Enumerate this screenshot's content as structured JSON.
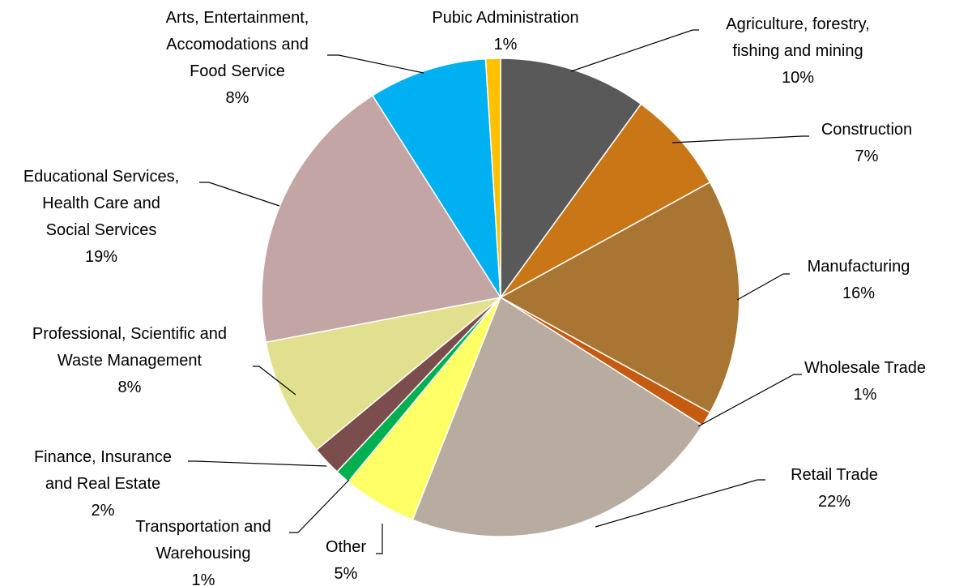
{
  "chart_data": {
    "type": "pie",
    "title": "",
    "slices": [
      {
        "label": [
          "Agriculture, forestry,",
          "fishing and mining"
        ],
        "value": 10,
        "pct": "10%",
        "color": "#595959"
      },
      {
        "label": [
          "Construction"
        ],
        "value": 7,
        "pct": "7%",
        "color": "#C97716"
      },
      {
        "label": [
          "Manufacturing"
        ],
        "value": 16,
        "pct": "16%",
        "color": "#A87533"
      },
      {
        "label": [
          "Wholesale Trade"
        ],
        "value": 1,
        "pct": "1%",
        "color": "#C55A11"
      },
      {
        "label": [
          "Retail Trade"
        ],
        "value": 22,
        "pct": "22%",
        "color": "#B8ABA0"
      },
      {
        "label": [
          "Other"
        ],
        "value": 5,
        "pct": "5%",
        "color": "#FFFF66"
      },
      {
        "label": [
          "Transportation and",
          "Warehousing"
        ],
        "value": 1,
        "pct": "1%",
        "color": "#00B050"
      },
      {
        "label": [
          "Finance, Insurance",
          "and Real Estate"
        ],
        "value": 2,
        "pct": "2%",
        "color": "#7B4D4D"
      },
      {
        "label": [
          "Professional, Scientific and",
          "Waste Management"
        ],
        "value": 8,
        "pct": "8%",
        "color": "#E0E08F"
      },
      {
        "label": [
          "Educational Services,",
          "Health Care and",
          "Social Services"
        ],
        "value": 19,
        "pct": "19%",
        "color": "#C4A5A6"
      },
      {
        "label": [
          "Arts, Entertainment,",
          "Accomodations and",
          "Food Service"
        ],
        "value": 8,
        "pct": "8%",
        "color": "#00B0F0"
      },
      {
        "label": [
          "Pubic Administration"
        ],
        "value": 1,
        "pct": "1%",
        "color": "#FFC000"
      }
    ]
  }
}
